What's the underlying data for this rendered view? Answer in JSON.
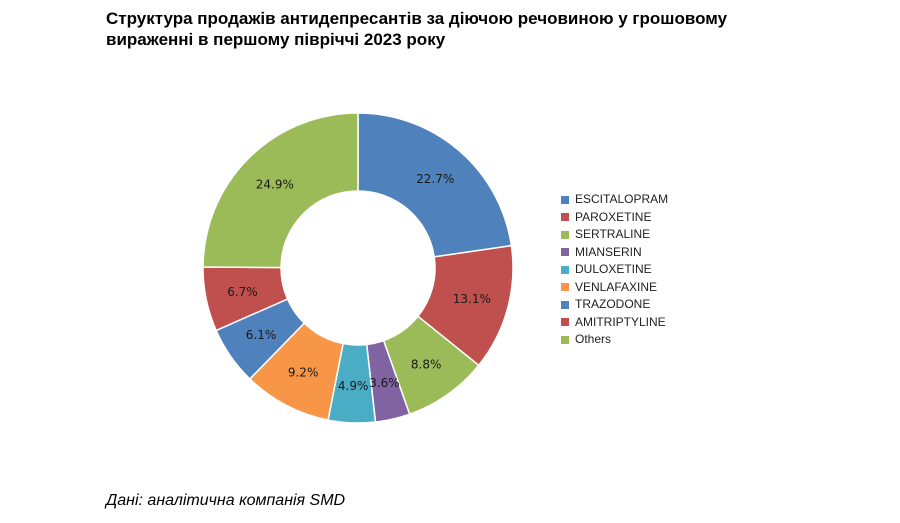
{
  "title": "Структура продажів антидепресантів за діючою речовиною у грошовому вираженні в першому півріччі 2023 року",
  "source": "Дані: аналітична компанія SMD",
  "chart_data": {
    "type": "pie",
    "variant": "donut",
    "legend_position": "right",
    "slices": [
      {
        "name": "ESCITALOPRAM",
        "value": 22.7,
        "label": "22.7%",
        "color": "#4F81BD"
      },
      {
        "name": "PAROXETINE",
        "value": 13.1,
        "label": "13.1%",
        "color": "#C0504D"
      },
      {
        "name": "SERTRALINE",
        "value": 8.8,
        "label": "8.8%",
        "color": "#9BBB59"
      },
      {
        "name": "MIANSERIN",
        "value": 3.6,
        "label": "3.6%",
        "color": "#8064A2"
      },
      {
        "name": "DULOXETINE",
        "value": 4.9,
        "label": "4.9%",
        "color": "#4BACC6"
      },
      {
        "name": "VENLAFAXINE",
        "value": 9.2,
        "label": "9.2%",
        "color": "#F79646"
      },
      {
        "name": "TRAZODONE",
        "value": 6.1,
        "label": "6.1%",
        "color": "#4F81BD"
      },
      {
        "name": "AMITRIPTYLINE",
        "value": 6.7,
        "label": "6.7%",
        "color": "#C0504D"
      },
      {
        "name": "Others",
        "value": 24.9,
        "label": "24.9%",
        "color": "#9BBB59"
      }
    ]
  }
}
